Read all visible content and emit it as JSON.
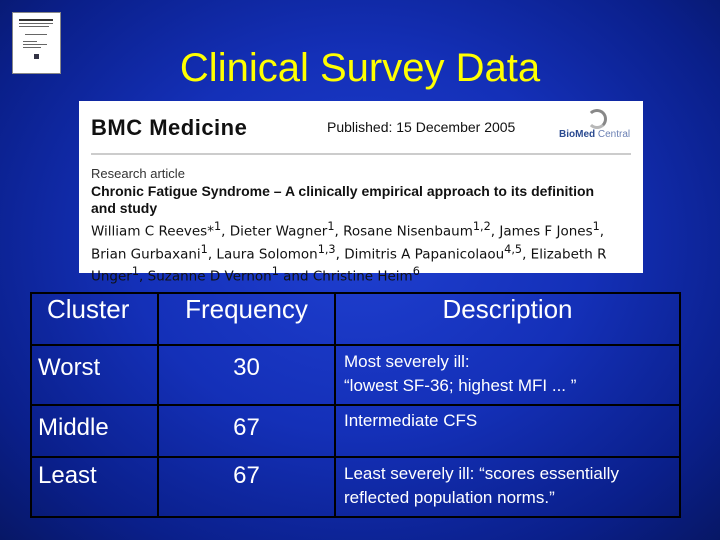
{
  "slide": {
    "title": "Clinical Survey Data"
  },
  "paper": {
    "journal": "BMC Medicine",
    "published": "Published: 15 December 2005",
    "publisher_logo": "BioMed Central",
    "publisher_logo_parts": [
      "BioMed",
      " Central"
    ],
    "article_type": "Research article",
    "article_title": "Chronic Fatigue Syndrome – A clinically empirical approach to its definition and study",
    "authors": "William C Reeves*1, Dieter Wagner1, Rosane Nisenbaum1,2, James F Jones1, Brian Gurbaxani1, Laura Solomon1,3, Dimitris A Papanicolaou4,5, Elizabeth R Unger1, Suzanne D Vernon1 and Christine Heim6"
  },
  "table": {
    "headers": [
      "Cluster",
      "Frequency",
      "Description"
    ],
    "rows": [
      {
        "cluster": "Worst",
        "frequency": "30",
        "description_lines": [
          "Most severely ill:",
          "“lowest SF-36; highest MFI ... ”"
        ]
      },
      {
        "cluster": "Middle",
        "frequency": "67",
        "description_lines": [
          "Intermediate CFS"
        ]
      },
      {
        "cluster": "Least",
        "frequency": "67",
        "description_lines": [
          "Least severely ill:  “scores essentially",
          "reflected population norms.”"
        ]
      }
    ]
  },
  "colors": {
    "background": "#1430b8",
    "title": "#ffff00",
    "text": "#ffffff",
    "grid_lines": "#000000"
  },
  "icons": [
    "paper-thumbnail-icon",
    "biomed-central-logo-icon"
  ]
}
